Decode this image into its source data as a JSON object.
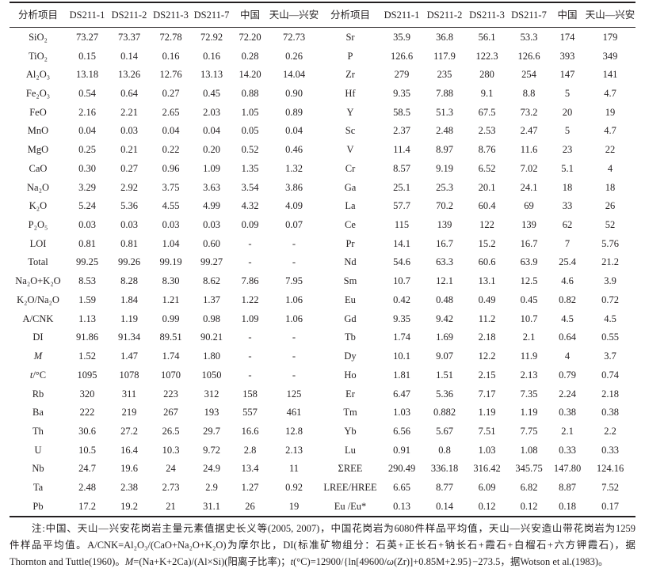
{
  "table": {
    "columns": [
      "分析项目",
      "DS211-1",
      "DS211-2",
      "DS211-3",
      "DS211-7",
      "中国",
      "天山—兴安"
    ],
    "left_rows": [
      {
        "item": "SiO₂",
        "values": [
          "73.27",
          "73.37",
          "72.78",
          "72.92",
          "72.20",
          "72.73"
        ]
      },
      {
        "item": "TiO₂",
        "values": [
          "0.15",
          "0.14",
          "0.16",
          "0.16",
          "0.28",
          "0.26"
        ]
      },
      {
        "item": "Al₂O₃",
        "values": [
          "13.18",
          "13.26",
          "12.76",
          "13.13",
          "14.20",
          "14.04"
        ]
      },
      {
        "item": "Fe₂O₃",
        "values": [
          "0.54",
          "0.64",
          "0.27",
          "0.45",
          "0.88",
          "0.90"
        ]
      },
      {
        "item": "FeO",
        "values": [
          "2.16",
          "2.21",
          "2.65",
          "2.03",
          "1.05",
          "0.89"
        ]
      },
      {
        "item": "MnO",
        "values": [
          "0.04",
          "0.03",
          "0.04",
          "0.04",
          "0.05",
          "0.04"
        ]
      },
      {
        "item": "MgO",
        "values": [
          "0.25",
          "0.21",
          "0.22",
          "0.20",
          "0.52",
          "0.46"
        ]
      },
      {
        "item": "CaO",
        "values": [
          "0.30",
          "0.27",
          "0.96",
          "1.09",
          "1.35",
          "1.32"
        ]
      },
      {
        "item": "Na₂O",
        "values": [
          "3.29",
          "2.92",
          "3.75",
          "3.63",
          "3.54",
          "3.86"
        ]
      },
      {
        "item": "K₂O",
        "values": [
          "5.24",
          "5.36",
          "4.55",
          "4.99",
          "4.32",
          "4.09"
        ]
      },
      {
        "item": "P₂O₅",
        "values": [
          "0.03",
          "0.03",
          "0.03",
          "0.03",
          "0.09",
          "0.07"
        ]
      },
      {
        "item": "LOI",
        "values": [
          "0.81",
          "0.81",
          "1.04",
          "0.60",
          "-",
          "-"
        ]
      },
      {
        "item": "Total",
        "values": [
          "99.25",
          "99.26",
          "99.19",
          "99.27",
          "-",
          "-"
        ]
      },
      {
        "item": "Na₂O+K₂O",
        "values": [
          "8.53",
          "8.28",
          "8.30",
          "8.62",
          "7.86",
          "7.95"
        ]
      },
      {
        "item": "K₂O/Na₂O",
        "values": [
          "1.59",
          "1.84",
          "1.21",
          "1.37",
          "1.22",
          "1.06"
        ]
      },
      {
        "item": "A/CNK",
        "values": [
          "1.13",
          "1.19",
          "0.99",
          "0.98",
          "1.09",
          "1.06"
        ]
      },
      {
        "item": "DI",
        "values": [
          "91.86",
          "91.34",
          "89.51",
          "90.21",
          "-",
          "-"
        ]
      },
      {
        "item_i": "M",
        "values": [
          "1.52",
          "1.47",
          "1.74",
          "1.80",
          "-",
          "-"
        ]
      },
      {
        "item_i": "t",
        "item": "/°C",
        "values": [
          "1095",
          "1078",
          "1070",
          "1050",
          "-",
          "-"
        ]
      },
      {
        "item": "Rb",
        "values": [
          "320",
          "311",
          "223",
          "312",
          "158",
          "125"
        ]
      },
      {
        "item": "Ba",
        "values": [
          "222",
          "219",
          "267",
          "193",
          "557",
          "461"
        ]
      },
      {
        "item": "Th",
        "values": [
          "30.6",
          "27.2",
          "26.5",
          "29.7",
          "16.6",
          "12.8"
        ]
      },
      {
        "item": "U",
        "values": [
          "10.5",
          "16.4",
          "10.3",
          "9.72",
          "2.8",
          "2.13"
        ]
      },
      {
        "item": "Nb",
        "values": [
          "24.7",
          "19.6",
          "24",
          "24.9",
          "13.4",
          "11"
        ]
      },
      {
        "item": "Ta",
        "values": [
          "2.48",
          "2.38",
          "2.73",
          "2.9",
          "1.27",
          "0.92"
        ]
      },
      {
        "item": "Pb",
        "values": [
          "17.2",
          "19.2",
          "21",
          "31.1",
          "26",
          "19"
        ]
      }
    ],
    "right_rows": [
      {
        "item": "Sr",
        "values": [
          "35.9",
          "36.8",
          "56.1",
          "53.3",
          "174",
          "179"
        ]
      },
      {
        "item": "P",
        "values": [
          "126.6",
          "117.9",
          "122.3",
          "126.6",
          "393",
          "349"
        ]
      },
      {
        "item": "Zr",
        "values": [
          "279",
          "235",
          "280",
          "254",
          "147",
          "141"
        ]
      },
      {
        "item": "Hf",
        "values": [
          "9.35",
          "7.88",
          "9.1",
          "8.8",
          "5",
          "4.7"
        ]
      },
      {
        "item": "Y",
        "values": [
          "58.5",
          "51.3",
          "67.5",
          "73.2",
          "20",
          "19"
        ]
      },
      {
        "item": "Sc",
        "values": [
          "2.37",
          "2.48",
          "2.53",
          "2.47",
          "5",
          "4.7"
        ]
      },
      {
        "item": "V",
        "values": [
          "11.4",
          "8.97",
          "8.76",
          "11.6",
          "23",
          "22"
        ]
      },
      {
        "item": "Cr",
        "values": [
          "8.57",
          "9.19",
          "6.52",
          "7.02",
          "5.1",
          "4"
        ]
      },
      {
        "item": "Ga",
        "values": [
          "25.1",
          "25.3",
          "20.1",
          "24.1",
          "18",
          "18"
        ]
      },
      {
        "item": "La",
        "values": [
          "57.7",
          "70.2",
          "60.4",
          "69",
          "33",
          "26"
        ]
      },
      {
        "item": "Ce",
        "values": [
          "115",
          "139",
          "122",
          "139",
          "62",
          "52"
        ]
      },
      {
        "item": "Pr",
        "values": [
          "14.1",
          "16.7",
          "15.2",
          "16.7",
          "7",
          "5.76"
        ]
      },
      {
        "item": "Nd",
        "values": [
          "54.6",
          "63.3",
          "60.6",
          "63.9",
          "25.4",
          "21.2"
        ]
      },
      {
        "item": "Sm",
        "values": [
          "10.7",
          "12.1",
          "13.1",
          "12.5",
          "4.6",
          "3.9"
        ]
      },
      {
        "item": "Eu",
        "values": [
          "0.42",
          "0.48",
          "0.49",
          "0.45",
          "0.82",
          "0.72"
        ]
      },
      {
        "item": "Gd",
        "values": [
          "9.35",
          "9.42",
          "11.2",
          "10.7",
          "4.5",
          "4.5"
        ]
      },
      {
        "item": "Tb",
        "values": [
          "1.74",
          "1.69",
          "2.18",
          "2.1",
          "0.64",
          "0.55"
        ]
      },
      {
        "item": "Dy",
        "values": [
          "10.1",
          "9.07",
          "12.2",
          "11.9",
          "4",
          "3.7"
        ]
      },
      {
        "item": "Ho",
        "values": [
          "1.81",
          "1.51",
          "2.15",
          "2.13",
          "0.79",
          "0.74"
        ]
      },
      {
        "item": "Er",
        "values": [
          "6.47",
          "5.36",
          "7.17",
          "7.35",
          "2.24",
          "2.18"
        ]
      },
      {
        "item": "Tm",
        "values": [
          "1.03",
          "0.882",
          "1.19",
          "1.19",
          "0.38",
          "0.38"
        ]
      },
      {
        "item": "Yb",
        "values": [
          "6.56",
          "5.67",
          "7.51",
          "7.75",
          "2.1",
          "2.2"
        ]
      },
      {
        "item": "Lu",
        "values": [
          "0.91",
          "0.8",
          "1.03",
          "1.08",
          "0.33",
          "0.33"
        ]
      },
      {
        "item": "ΣREE",
        "values": [
          "290.49",
          "336.18",
          "316.42",
          "345.75",
          "147.80",
          "124.16"
        ]
      },
      {
        "item": "LREE/HREE",
        "values": [
          "6.65",
          "8.77",
          "6.09",
          "6.82",
          "8.87",
          "7.52"
        ]
      },
      {
        "item": "Eu /Eu*",
        "values": [
          "0.13",
          "0.14",
          "0.12",
          "0.12",
          "0.18",
          "0.17"
        ]
      }
    ]
  },
  "note": {
    "lines": [
      [
        {
          "t": "注:中国、天山—兴安花岗岩主量元素值据史长义等(2005, 2007)，中国花岗岩为6080件样品平均值，天山—兴安造山带花岗岩为1259"
        }
      ],
      [
        {
          "t": "件样品平均值。A/CNK=Al₂O₃/(CaO+Na₂O+K₂O)为摩尔比，DI(标准矿物组分：石英+正长石+钠长石+霞石+白榴石+六方钾霞石)，据"
        }
      ],
      [
        {
          "t": "Thornton and Tuttle(1960)。"
        },
        {
          "t": "M",
          "i": true
        },
        {
          "t": "=(Na+K+2Ca)/(Al×Si)(阳离子比率)；"
        },
        {
          "t": "t",
          "i": true
        },
        {
          "t": "(°C)=12900/{ln[49600/"
        },
        {
          "t": "ω",
          "i": true
        },
        {
          "t": "(Zr)]+0.85M+2.95}−273.5，据Wotson et al.(1983)。"
        }
      ]
    ]
  }
}
